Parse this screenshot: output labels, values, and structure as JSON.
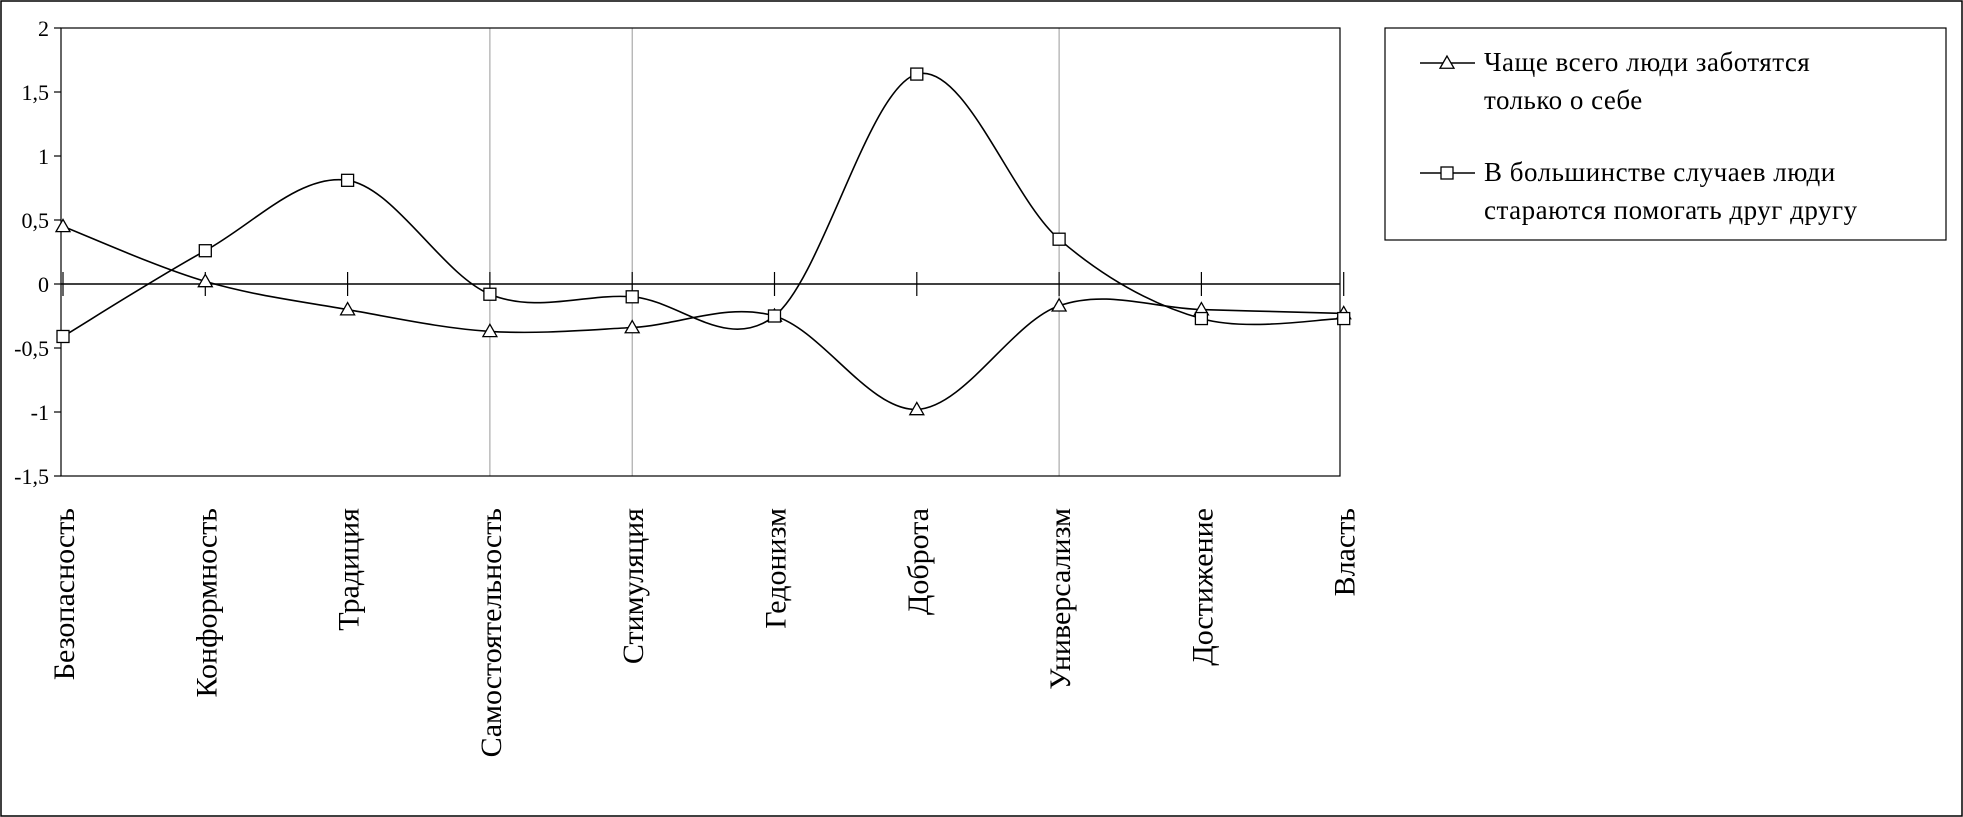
{
  "chart_data": {
    "type": "line",
    "title": "",
    "xlabel": "",
    "ylabel": "",
    "categories": [
      "Безопасность",
      "Конформность",
      "Традиция",
      "Самостоятельность",
      "Стимуляция",
      "Гедонизм",
      "Доброта",
      "Универсализм",
      "Достижение",
      "Власть"
    ],
    "ylim": [
      -1.5,
      2
    ],
    "yticks": [
      -1.5,
      -1,
      -0.5,
      0,
      0.5,
      1,
      1.5,
      2
    ],
    "ytick_labels": [
      "-1,5",
      "-1",
      "-0,5",
      "0",
      "0,5",
      "1",
      "1,5",
      "2"
    ],
    "vertical_gridlines_at": [
      "Самостоятельность",
      "Стимуляция",
      "Универсализм"
    ],
    "smoothed": true,
    "legend_position": "right",
    "series": [
      {
        "name": "Чаще всего люди  заботятся только о себе",
        "legend_lines": [
          "Чаще всего люди  заботятся",
          "только о себе"
        ],
        "marker": "triangle",
        "color": "#000000",
        "values": [
          0.45,
          0.02,
          -0.2,
          -0.37,
          -0.34,
          -0.25,
          -0.98,
          -0.17,
          -0.2,
          -0.23
        ]
      },
      {
        "name": "В большинстве случаев люди стараются помогать  друг другу",
        "legend_lines": [
          "В большинстве случаев люди",
          "стараются помогать  друг другу"
        ],
        "marker": "square",
        "color": "#000000",
        "values": [
          -0.41,
          0.26,
          0.81,
          -0.08,
          -0.1,
          -0.25,
          1.64,
          0.35,
          -0.27,
          -0.27
        ]
      }
    ]
  }
}
